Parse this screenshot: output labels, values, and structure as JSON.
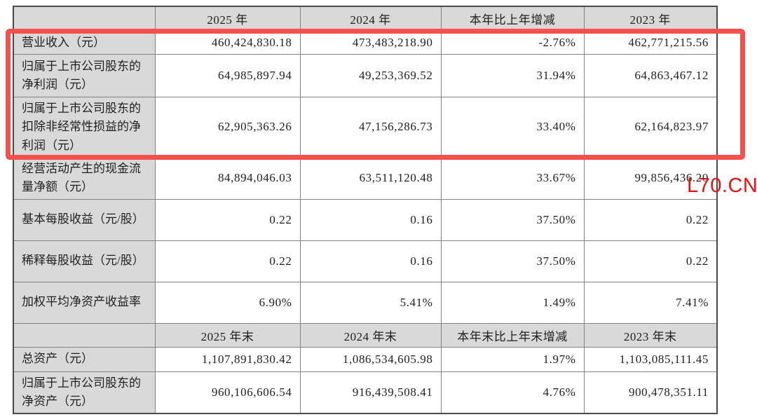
{
  "table": {
    "header_primary": {
      "cells": [
        "2025 年",
        "2024 年",
        "本年比上年增减",
        "2023 年"
      ]
    },
    "rows_primary": [
      {
        "label": "营业收入（元）",
        "values": [
          "460,424,830.18",
          "473,483,218.90",
          "-2.76%",
          "462,771,215.56"
        ]
      },
      {
        "label": "归属于上市公司股东的净利润（元）",
        "values": [
          "64,985,897.94",
          "49,253,369.52",
          "31.94%",
          "64,863,467.12"
        ]
      },
      {
        "label": "归属于上市公司股东的扣除非经常性损益的净利润（元）",
        "values": [
          "62,905,363.26",
          "47,156,286.73",
          "33.40%",
          "62,164,823.97"
        ]
      },
      {
        "label": "经营活动产生的现金流量净额（元）",
        "values": [
          "84,894,046.03",
          "63,511,120.48",
          "33.67%",
          "99,856,436.20"
        ]
      },
      {
        "label": "基本每股收益（元/股）",
        "values": [
          "0.22",
          "0.16",
          "37.50%",
          "0.22"
        ]
      },
      {
        "label": "稀释每股收益（元/股）",
        "values": [
          "0.22",
          "0.16",
          "37.50%",
          "0.22"
        ]
      },
      {
        "label": "加权平均净资产收益率",
        "values": [
          "6.90%",
          "5.41%",
          "1.49%",
          "7.41%"
        ]
      }
    ],
    "header_secondary": {
      "cells": [
        "2025 年末",
        "2024 年末",
        "本年末比上年末增减",
        "2023 年末"
      ]
    },
    "rows_secondary": [
      {
        "label": "总资产（元）",
        "values": [
          "1,107,891,830.42",
          "1,086,534,605.98",
          "1.97%",
          "1,103,085,111.45"
        ]
      },
      {
        "label": "归属于上市公司股东的净资产（元）",
        "values": [
          "960,106,606.54",
          "916,439,508.41",
          "4.76%",
          "900,478,351.11"
        ]
      }
    ]
  },
  "annotations": {
    "highlight_box_color": "#f4504d",
    "watermark": {
      "text": "L70.CN",
      "color": "#e61212"
    }
  }
}
